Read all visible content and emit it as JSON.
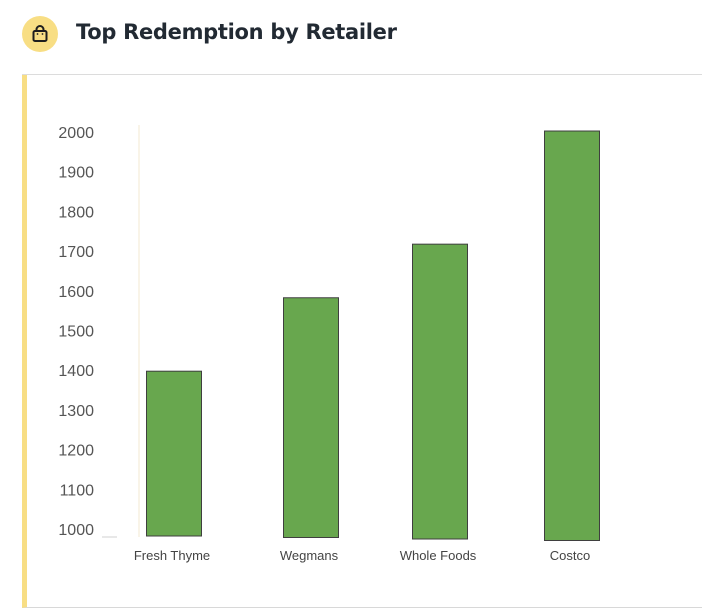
{
  "header": {
    "title": "Top Redemption by Retailer",
    "icon": "shopping-bag-icon",
    "icon_bg_color": "#f8de84"
  },
  "chart_data": {
    "type": "bar",
    "title": "Top Redemption by Retailer",
    "xlabel": "",
    "ylabel": "",
    "categories": [
      "Fresh Thyme",
      "Wegmans",
      "Whole Foods",
      "Costco"
    ],
    "values": [
      1400,
      1585,
      1720,
      2005
    ],
    "ylim": [
      1000,
      2000
    ],
    "yticks": [
      1000,
      1100,
      1200,
      1300,
      1400,
      1500,
      1600,
      1700,
      1800,
      1900,
      2000
    ],
    "bar_color": "#68a74e",
    "bar_border_color": "#3f3f3f",
    "grid": false,
    "legend": "none"
  }
}
